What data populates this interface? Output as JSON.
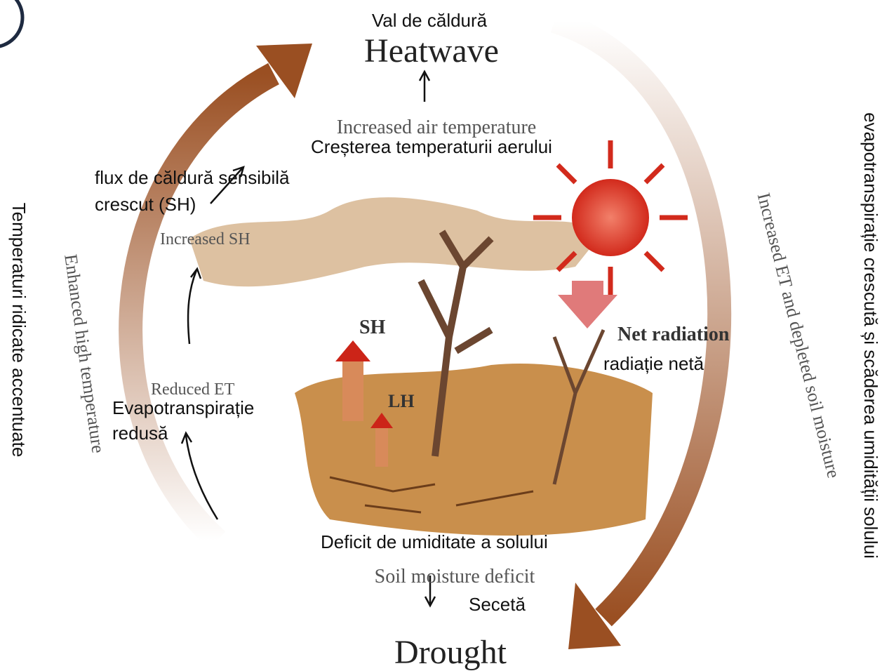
{
  "heatwave": {
    "ro": "Val de căldură",
    "en": "Heatwave"
  },
  "air_temperature": {
    "en": "Increased air temperature",
    "ro": "Creșterea temperaturii aerului"
  },
  "sensible_heat": {
    "ro_lines": [
      "flux de căldură sensibilă",
      "crescut (SH)"
    ],
    "en": "Increased SH"
  },
  "reduced_et": {
    "en": "Reduced ET",
    "ro_lines": [
      "Evapotranspirație",
      "redusă"
    ]
  },
  "fluxes": {
    "sh": "SH",
    "lh": "LH"
  },
  "net_radiation": {
    "en": "Net radiation",
    "ro": "radiație netă"
  },
  "soil_moisture": {
    "ro": "Deficit de umiditate a solului",
    "en": "Soil moisture deficit"
  },
  "drought": {
    "ro": "Secetă",
    "en": "Drought"
  },
  "left_loop": {
    "ro": "Temperaturi ridicate accentuate",
    "en": "Enhanced high temperature"
  },
  "right_loop": {
    "en": "Increased ET and depleted soil moisture",
    "ro": "evapotranspirație crescută și scăderea umidității solului"
  }
}
